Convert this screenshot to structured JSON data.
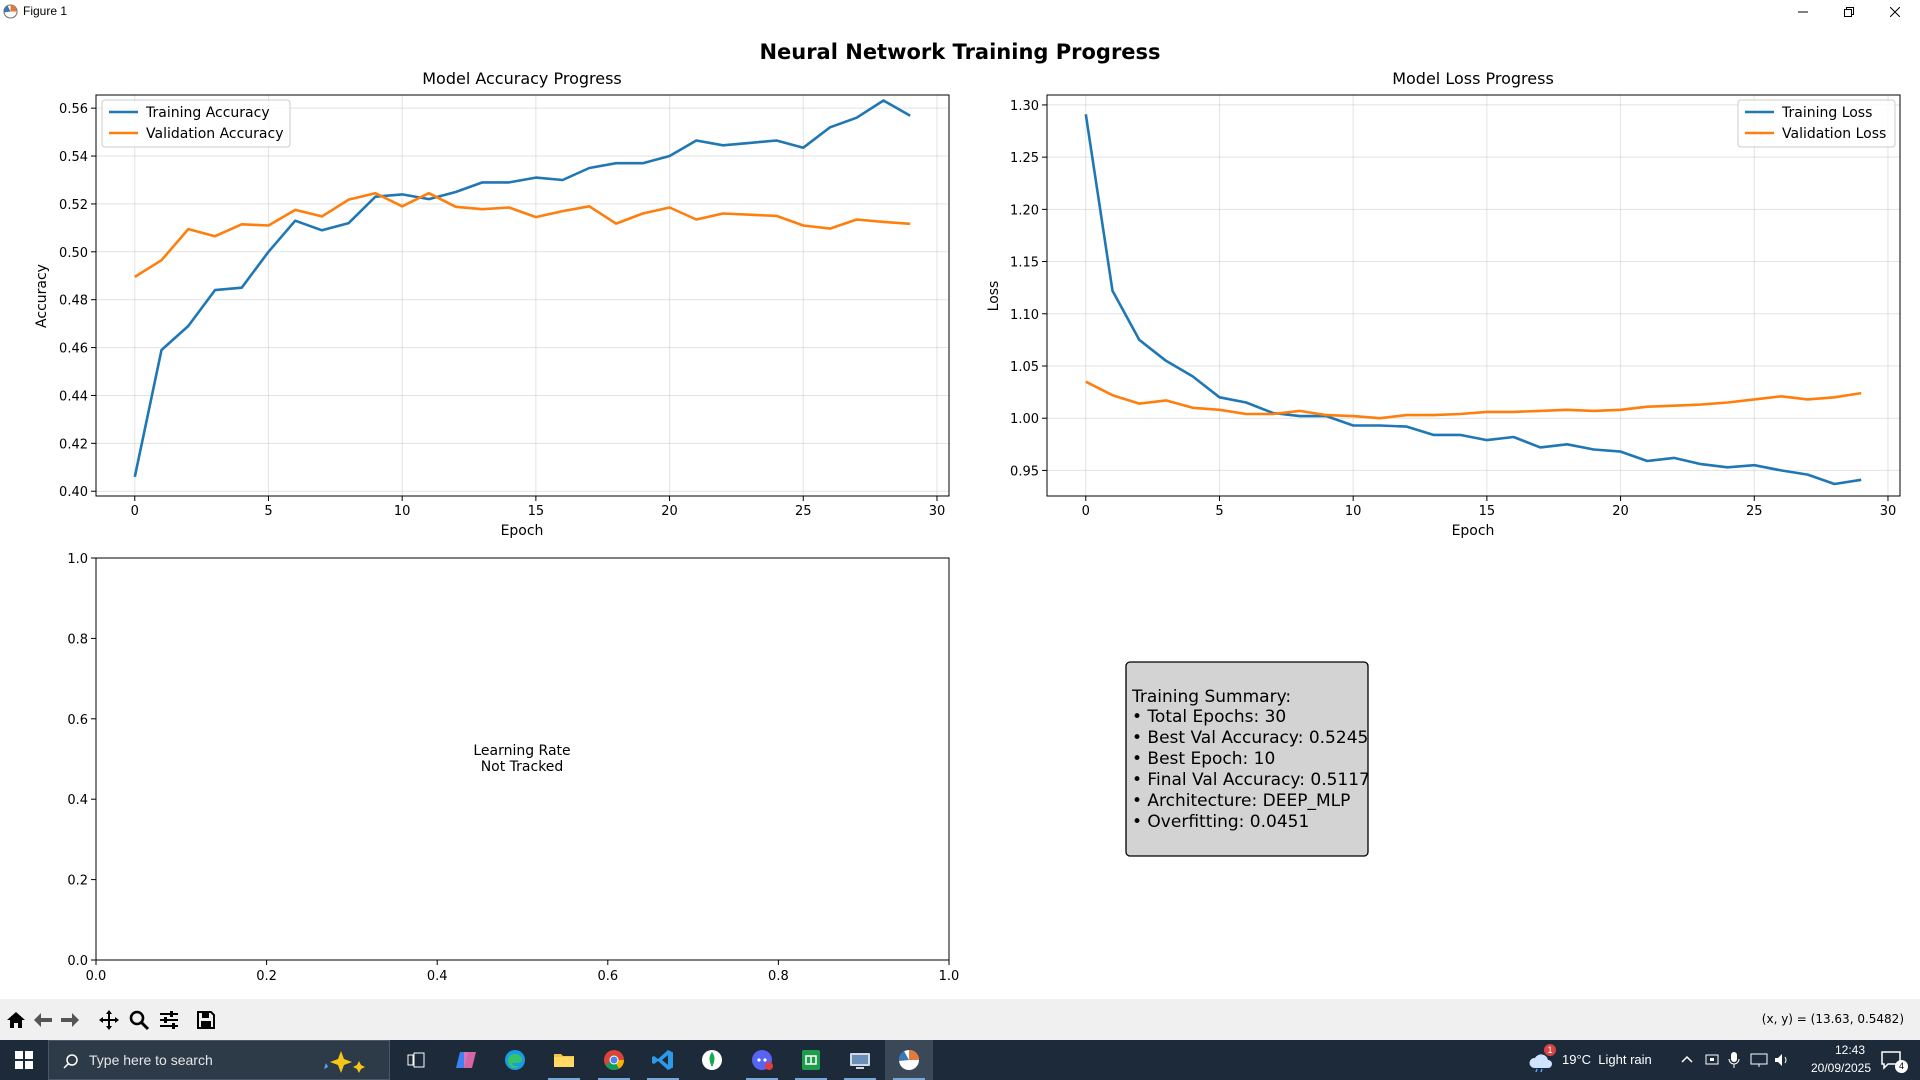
{
  "window": {
    "title": "Figure 1"
  },
  "figure": {
    "suptitle": "Neural Network Training Progress",
    "accuracy_panel": {
      "title": "Model Accuracy Progress",
      "xlabel": "Epoch",
      "ylabel": "Accuracy"
    },
    "loss_panel": {
      "title": "Model Loss Progress",
      "xlabel": "Epoch",
      "ylabel": "Loss"
    },
    "lr_panel": {
      "message_line1": "Learning Rate",
      "message_line2": "Not Tracked"
    },
    "summary": {
      "heading": "Training Summary:",
      "lines": [
        "• Total Epochs: 30",
        "• Best Val Accuracy: 0.5245",
        "• Best Epoch: 10",
        "• Final Val Accuracy: 0.5117",
        "• Architecture: DEEP_MLP",
        "• Overfitting: 0.0451"
      ]
    }
  },
  "toolbar": {
    "buttons": [
      "home-icon",
      "back-arrow-icon",
      "forward-arrow-icon",
      "pan-icon",
      "zoom-icon",
      "configure-subplots-icon",
      "save-icon"
    ],
    "coordinates": "(x, y) = (13.63, 0.5482)"
  },
  "taskbar": {
    "search_placeholder": "Type here to search",
    "weather": "19°C  Light rain",
    "weather_badge": "1",
    "time": "12:43",
    "date": "20/09/2025",
    "notification_count": "4"
  },
  "colors": {
    "training": "#1f77b4",
    "validation": "#ff7f0e",
    "summary_bg": "#d3d3d3",
    "taskbar": "#1c2a3a"
  },
  "chart_data": [
    {
      "type": "line",
      "title": "Model Accuracy Progress",
      "xlabel": "Epoch",
      "ylabel": "Accuracy",
      "x": [
        0,
        1,
        2,
        3,
        4,
        5,
        6,
        7,
        8,
        9,
        10,
        11,
        12,
        13,
        14,
        15,
        16,
        17,
        18,
        19,
        20,
        21,
        22,
        23,
        24,
        25,
        26,
        27,
        28,
        29
      ],
      "xlim": [
        -1.45,
        30.45
      ],
      "ylim": [
        0.398,
        0.5655
      ],
      "xticks": [
        0,
        5,
        10,
        15,
        20,
        25,
        30
      ],
      "yticks": [
        0.4,
        0.42,
        0.44,
        0.46,
        0.48,
        0.5,
        0.52,
        0.54,
        0.56
      ],
      "ytick_labels": [
        "0.40",
        "0.42",
        "0.44",
        "0.46",
        "0.48",
        "0.50",
        "0.52",
        "0.54",
        "0.56"
      ],
      "grid": true,
      "legend": "upper left",
      "series": [
        {
          "name": "Training Accuracy",
          "color": "#1f77b4",
          "values": [
            0.406,
            0.459,
            0.469,
            0.484,
            0.485,
            0.5,
            0.513,
            0.509,
            0.512,
            0.523,
            0.524,
            0.522,
            0.525,
            0.529,
            0.529,
            0.531,
            0.53,
            0.535,
            0.537,
            0.537,
            0.54,
            0.5465,
            0.5445,
            0.5455,
            0.5465,
            0.5435,
            0.552,
            0.556,
            0.5632,
            0.5568
          ]
        },
        {
          "name": "Validation Accuracy",
          "color": "#ff7f0e",
          "values": [
            0.4895,
            0.4965,
            0.5095,
            0.5065,
            0.5115,
            0.511,
            0.5175,
            0.5148,
            0.5218,
            0.5245,
            0.519,
            0.5245,
            0.5188,
            0.5178,
            0.5185,
            0.5145,
            0.517,
            0.519,
            0.5118,
            0.516,
            0.5185,
            0.5135,
            0.516,
            0.5155,
            0.515,
            0.511,
            0.5097,
            0.5135,
            0.5125,
            0.5117
          ]
        }
      ]
    },
    {
      "type": "line",
      "title": "Model Loss Progress",
      "xlabel": "Epoch",
      "ylabel": "Loss",
      "x": [
        0,
        1,
        2,
        3,
        4,
        5,
        6,
        7,
        8,
        9,
        10,
        11,
        12,
        13,
        14,
        15,
        16,
        17,
        18,
        19,
        20,
        21,
        22,
        23,
        24,
        25,
        26,
        27,
        28,
        29
      ],
      "xlim": [
        -1.45,
        30.45
      ],
      "ylim": [
        0.9255,
        1.3095
      ],
      "xticks": [
        0,
        5,
        10,
        15,
        20,
        25,
        30
      ],
      "yticks": [
        0.95,
        1.0,
        1.05,
        1.1,
        1.15,
        1.2,
        1.25,
        1.3
      ],
      "ytick_labels": [
        "0.95",
        "1.00",
        "1.05",
        "1.10",
        "1.15",
        "1.20",
        "1.25",
        "1.30"
      ],
      "grid": true,
      "legend": "upper right",
      "series": [
        {
          "name": "Training Loss",
          "color": "#1f77b4",
          "values": [
            1.291,
            1.122,
            1.075,
            1.055,
            1.04,
            1.02,
            1.015,
            1.005,
            1.002,
            1.002,
            0.993,
            0.993,
            0.992,
            0.984,
            0.984,
            0.979,
            0.982,
            0.972,
            0.975,
            0.97,
            0.968,
            0.959,
            0.962,
            0.956,
            0.953,
            0.955,
            0.95,
            0.946,
            0.937,
            0.941
          ]
        },
        {
          "name": "Validation Loss",
          "color": "#ff7f0e",
          "values": [
            1.035,
            1.022,
            1.014,
            1.017,
            1.01,
            1.008,
            1.004,
            1.004,
            1.007,
            1.003,
            1.002,
            1.0,
            1.003,
            1.003,
            1.004,
            1.006,
            1.006,
            1.007,
            1.008,
            1.007,
            1.008,
            1.011,
            1.012,
            1.013,
            1.015,
            1.018,
            1.021,
            1.018,
            1.02,
            1.024
          ]
        }
      ]
    },
    {
      "type": "line",
      "title": "",
      "xlabel": "",
      "ylabel": "",
      "xlim": [
        0,
        1
      ],
      "ylim": [
        0,
        1
      ],
      "xticks": [
        0.0,
        0.2,
        0.4,
        0.6,
        0.8,
        1.0
      ],
      "yticks": [
        0.0,
        0.2,
        0.4,
        0.6,
        0.8,
        1.0
      ],
      "xtick_labels": [
        "0.0",
        "0.2",
        "0.4",
        "0.6",
        "0.8",
        "1.0"
      ],
      "ytick_labels": [
        "0.0",
        "0.2",
        "0.4",
        "0.6",
        "0.8",
        "1.0"
      ],
      "grid": false,
      "annotations": [
        "Learning Rate",
        "Not Tracked"
      ],
      "series": []
    }
  ]
}
